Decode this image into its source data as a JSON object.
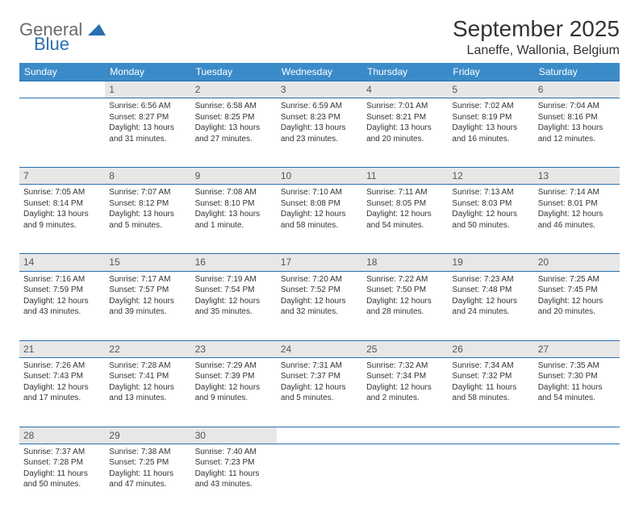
{
  "logo": {
    "general": "General",
    "blue": "Blue",
    "tri_color": "#2a6fb0"
  },
  "title": "September 2025",
  "location": "Laneffe, Wallonia, Belgium",
  "colors": {
    "header_bg": "#3b8bc9",
    "daynum_bg": "#e7e7e7",
    "rule": "#2a6fb0",
    "text": "#333333"
  },
  "weekdays": [
    "Sunday",
    "Monday",
    "Tuesday",
    "Wednesday",
    "Thursday",
    "Friday",
    "Saturday"
  ],
  "weeks": [
    {
      "nums": [
        "",
        "1",
        "2",
        "3",
        "4",
        "5",
        "6"
      ],
      "cells": [
        null,
        {
          "sr": "6:56 AM",
          "ss": "8:27 PM",
          "dl": "13 hours and 31 minutes."
        },
        {
          "sr": "6:58 AM",
          "ss": "8:25 PM",
          "dl": "13 hours and 27 minutes."
        },
        {
          "sr": "6:59 AM",
          "ss": "8:23 PM",
          "dl": "13 hours and 23 minutes."
        },
        {
          "sr": "7:01 AM",
          "ss": "8:21 PM",
          "dl": "13 hours and 20 minutes."
        },
        {
          "sr": "7:02 AM",
          "ss": "8:19 PM",
          "dl": "13 hours and 16 minutes."
        },
        {
          "sr": "7:04 AM",
          "ss": "8:16 PM",
          "dl": "13 hours and 12 minutes."
        }
      ]
    },
    {
      "nums": [
        "7",
        "8",
        "9",
        "10",
        "11",
        "12",
        "13"
      ],
      "cells": [
        {
          "sr": "7:05 AM",
          "ss": "8:14 PM",
          "dl": "13 hours and 9 minutes."
        },
        {
          "sr": "7:07 AM",
          "ss": "8:12 PM",
          "dl": "13 hours and 5 minutes."
        },
        {
          "sr": "7:08 AM",
          "ss": "8:10 PM",
          "dl": "13 hours and 1 minute."
        },
        {
          "sr": "7:10 AM",
          "ss": "8:08 PM",
          "dl": "12 hours and 58 minutes."
        },
        {
          "sr": "7:11 AM",
          "ss": "8:05 PM",
          "dl": "12 hours and 54 minutes."
        },
        {
          "sr": "7:13 AM",
          "ss": "8:03 PM",
          "dl": "12 hours and 50 minutes."
        },
        {
          "sr": "7:14 AM",
          "ss": "8:01 PM",
          "dl": "12 hours and 46 minutes."
        }
      ]
    },
    {
      "nums": [
        "14",
        "15",
        "16",
        "17",
        "18",
        "19",
        "20"
      ],
      "cells": [
        {
          "sr": "7:16 AM",
          "ss": "7:59 PM",
          "dl": "12 hours and 43 minutes."
        },
        {
          "sr": "7:17 AM",
          "ss": "7:57 PM",
          "dl": "12 hours and 39 minutes."
        },
        {
          "sr": "7:19 AM",
          "ss": "7:54 PM",
          "dl": "12 hours and 35 minutes."
        },
        {
          "sr": "7:20 AM",
          "ss": "7:52 PM",
          "dl": "12 hours and 32 minutes."
        },
        {
          "sr": "7:22 AM",
          "ss": "7:50 PM",
          "dl": "12 hours and 28 minutes."
        },
        {
          "sr": "7:23 AM",
          "ss": "7:48 PM",
          "dl": "12 hours and 24 minutes."
        },
        {
          "sr": "7:25 AM",
          "ss": "7:45 PM",
          "dl": "12 hours and 20 minutes."
        }
      ]
    },
    {
      "nums": [
        "21",
        "22",
        "23",
        "24",
        "25",
        "26",
        "27"
      ],
      "cells": [
        {
          "sr": "7:26 AM",
          "ss": "7:43 PM",
          "dl": "12 hours and 17 minutes."
        },
        {
          "sr": "7:28 AM",
          "ss": "7:41 PM",
          "dl": "12 hours and 13 minutes."
        },
        {
          "sr": "7:29 AM",
          "ss": "7:39 PM",
          "dl": "12 hours and 9 minutes."
        },
        {
          "sr": "7:31 AM",
          "ss": "7:37 PM",
          "dl": "12 hours and 5 minutes."
        },
        {
          "sr": "7:32 AM",
          "ss": "7:34 PM",
          "dl": "12 hours and 2 minutes."
        },
        {
          "sr": "7:34 AM",
          "ss": "7:32 PM",
          "dl": "11 hours and 58 minutes."
        },
        {
          "sr": "7:35 AM",
          "ss": "7:30 PM",
          "dl": "11 hours and 54 minutes."
        }
      ]
    },
    {
      "nums": [
        "28",
        "29",
        "30",
        "",
        "",
        "",
        ""
      ],
      "cells": [
        {
          "sr": "7:37 AM",
          "ss": "7:28 PM",
          "dl": "11 hours and 50 minutes."
        },
        {
          "sr": "7:38 AM",
          "ss": "7:25 PM",
          "dl": "11 hours and 47 minutes."
        },
        {
          "sr": "7:40 AM",
          "ss": "7:23 PM",
          "dl": "11 hours and 43 minutes."
        },
        null,
        null,
        null,
        null
      ]
    }
  ],
  "labels": {
    "sunrise": "Sunrise: ",
    "sunset": "Sunset: ",
    "daylight": "Daylight: "
  }
}
